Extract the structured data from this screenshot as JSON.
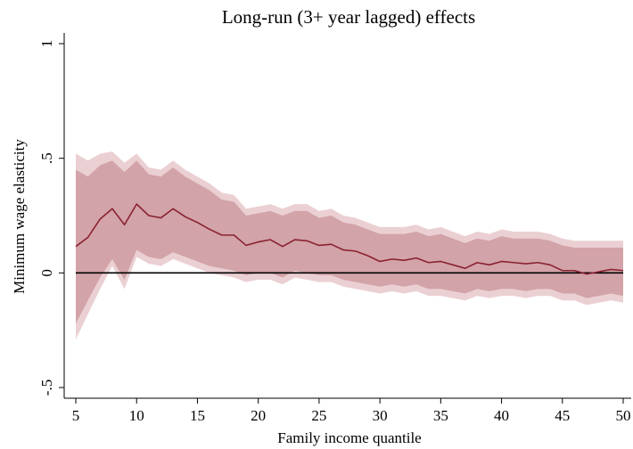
{
  "chart_data": {
    "type": "line",
    "title": "Long-run (3+ year lagged) effects",
    "xlabel": "Family income quantile",
    "ylabel": "Minimum wage elasticity",
    "xlim": [
      5,
      50
    ],
    "ylim": [
      -0.5,
      1
    ],
    "x_ticks": [
      5,
      10,
      15,
      20,
      25,
      30,
      35,
      40,
      45,
      50
    ],
    "x_tick_labels": [
      "5",
      "10",
      "15",
      "20",
      "25",
      "30",
      "35",
      "40",
      "45",
      "50"
    ],
    "y_ticks": [
      -0.5,
      0,
      0.5,
      1
    ],
    "y_tick_labels": [
      "-.5",
      "0",
      ".5",
      "1"
    ],
    "reference_line": 0,
    "grid": false,
    "x": [
      5,
      6,
      7,
      8,
      9,
      10,
      11,
      12,
      13,
      14,
      15,
      16,
      17,
      18,
      19,
      20,
      21,
      22,
      23,
      24,
      25,
      26,
      27,
      28,
      29,
      30,
      31,
      32,
      33,
      34,
      35,
      36,
      37,
      38,
      39,
      40,
      41,
      42,
      43,
      44,
      45,
      46,
      47,
      48,
      49,
      50
    ],
    "series": [
      {
        "values": [
          0.115,
          0.155,
          0.235,
          0.28,
          0.21,
          0.3,
          0.25,
          0.24,
          0.28,
          0.245,
          0.22,
          0.19,
          0.165,
          0.165,
          0.12,
          0.135,
          0.145,
          0.115,
          0.145,
          0.14,
          0.12,
          0.125,
          0.1,
          0.095,
          0.075,
          0.05,
          0.06,
          0.055,
          0.065,
          0.045,
          0.05,
          0.035,
          0.02,
          0.045,
          0.035,
          0.05,
          0.045,
          0.04,
          0.045,
          0.035,
          0.01,
          0.01,
          -0.005,
          0.005,
          0.015,
          0.01
        ],
        "ci_lower": [
          -0.22,
          -0.12,
          -0.02,
          0.06,
          -0.03,
          0.1,
          0.07,
          0.06,
          0.09,
          0.07,
          0.05,
          0.03,
          0.02,
          0.01,
          -0.01,
          0.0,
          0.0,
          -0.02,
          0.01,
          0.0,
          -0.01,
          -0.01,
          -0.03,
          -0.04,
          -0.05,
          -0.06,
          -0.05,
          -0.06,
          -0.05,
          -0.07,
          -0.07,
          -0.08,
          -0.09,
          -0.07,
          -0.08,
          -0.07,
          -0.07,
          -0.08,
          -0.07,
          -0.07,
          -0.09,
          -0.09,
          -0.11,
          -0.1,
          -0.09,
          -0.1
        ],
        "ci_upper": [
          0.45,
          0.42,
          0.47,
          0.49,
          0.44,
          0.49,
          0.43,
          0.42,
          0.46,
          0.42,
          0.39,
          0.36,
          0.32,
          0.31,
          0.25,
          0.26,
          0.27,
          0.25,
          0.27,
          0.27,
          0.24,
          0.25,
          0.22,
          0.21,
          0.19,
          0.17,
          0.17,
          0.17,
          0.18,
          0.16,
          0.17,
          0.15,
          0.13,
          0.15,
          0.14,
          0.16,
          0.15,
          0.15,
          0.15,
          0.14,
          0.12,
          0.11,
          0.11,
          0.11,
          0.11,
          0.11
        ],
        "ci_lower_outer": [
          -0.29,
          -0.18,
          -0.07,
          0.03,
          -0.07,
          0.07,
          0.04,
          0.03,
          0.06,
          0.04,
          0.02,
          0.0,
          -0.01,
          -0.02,
          -0.04,
          -0.03,
          -0.03,
          -0.05,
          -0.02,
          -0.03,
          -0.04,
          -0.04,
          -0.06,
          -0.07,
          -0.08,
          -0.09,
          -0.08,
          -0.09,
          -0.08,
          -0.1,
          -0.1,
          -0.11,
          -0.12,
          -0.1,
          -0.11,
          -0.1,
          -0.1,
          -0.11,
          -0.1,
          -0.1,
          -0.12,
          -0.12,
          -0.14,
          -0.13,
          -0.12,
          -0.13
        ],
        "ci_upper_outer": [
          0.52,
          0.49,
          0.52,
          0.53,
          0.48,
          0.52,
          0.46,
          0.45,
          0.49,
          0.45,
          0.42,
          0.39,
          0.35,
          0.34,
          0.28,
          0.29,
          0.3,
          0.28,
          0.3,
          0.3,
          0.27,
          0.28,
          0.25,
          0.24,
          0.22,
          0.2,
          0.2,
          0.2,
          0.21,
          0.19,
          0.2,
          0.18,
          0.16,
          0.18,
          0.17,
          0.19,
          0.18,
          0.18,
          0.18,
          0.17,
          0.15,
          0.14,
          0.14,
          0.14,
          0.14,
          0.14
        ]
      }
    ],
    "colors": {
      "line": "#8b2232",
      "band_inner": "#d2a3a8",
      "band_outer": "#ebd0d3",
      "reference": "#000000",
      "axis": "#000000"
    }
  }
}
